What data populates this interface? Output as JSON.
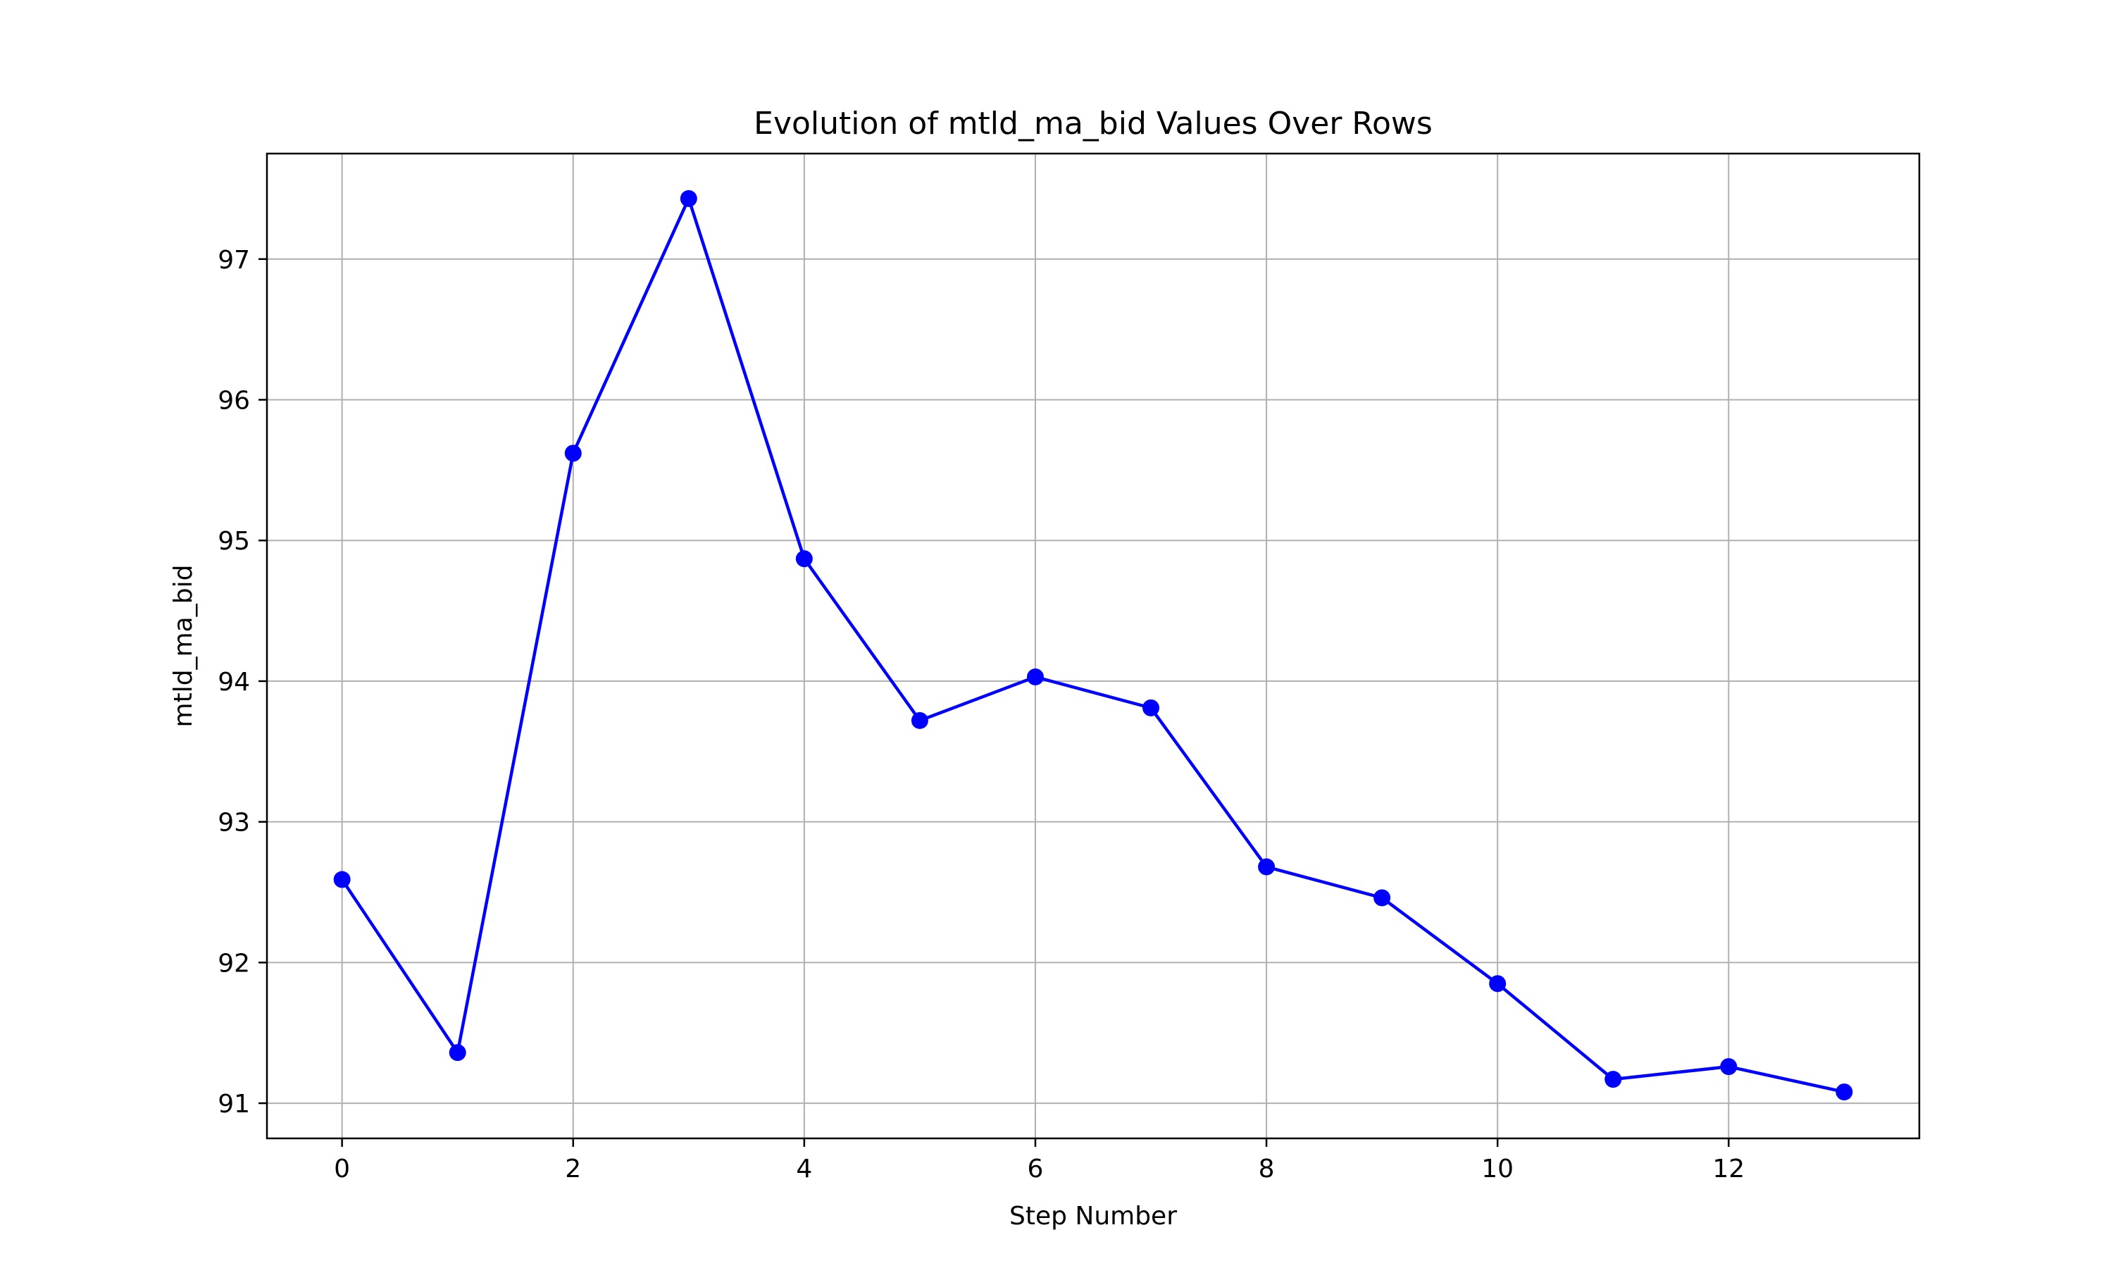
{
  "chart_data": {
    "type": "line",
    "title": "Evolution of mtld_ma_bid Values Over Rows",
    "xlabel": "Step Number",
    "ylabel": "mtld_ma_bid",
    "xlim": [
      -0.65,
      13.65
    ],
    "ylim": [
      90.75,
      97.75
    ],
    "xticks": [
      0,
      2,
      4,
      6,
      8,
      10,
      12
    ],
    "yticks": [
      91,
      92,
      93,
      94,
      95,
      96,
      97
    ],
    "grid": true,
    "legend": "none",
    "series": [
      {
        "color": "#0000ff",
        "marker": "circle",
        "x": [
          0,
          1,
          2,
          3,
          4,
          5,
          6,
          7,
          8,
          9,
          10,
          11,
          12,
          13
        ],
        "values": [
          92.59,
          91.36,
          95.62,
          97.43,
          94.87,
          93.72,
          94.03,
          93.81,
          92.68,
          92.46,
          91.85,
          91.17,
          91.26,
          91.08
        ]
      }
    ]
  }
}
